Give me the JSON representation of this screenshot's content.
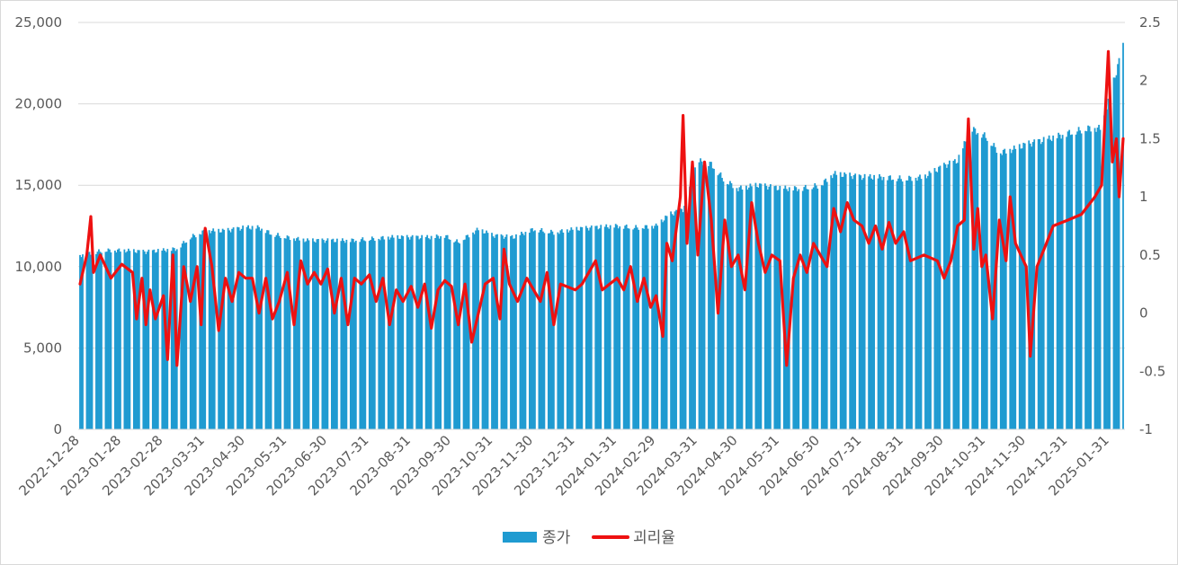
{
  "chart_data": {
    "type": "bar+line",
    "title": "",
    "grid": true,
    "legend_position": "bottom",
    "x_tick_labels": [
      "2022-12-28",
      "2023-01-28",
      "2023-02-28",
      "2023-03-31",
      "2023-04-30",
      "2023-05-31",
      "2023-06-30",
      "2023-07-31",
      "2023-08-31",
      "2023-09-30",
      "2023-10-31",
      "2023-11-30",
      "2023-12-31",
      "2024-01-31",
      "2024-02-29",
      "2024-03-31",
      "2024-04-30",
      "2024-05-31",
      "2024-06-30",
      "2024-07-31",
      "2024-08-31",
      "2024-09-30",
      "2024-10-31",
      "2024-11-30",
      "2024-12-31",
      "2025-01-31"
    ],
    "y_left": {
      "min": 0,
      "max": 25000,
      "ticks": [
        "0",
        "5,000",
        "10,000",
        "15,000",
        "20,000",
        "25,000"
      ]
    },
    "y_right": {
      "min": -1,
      "max": 2.5,
      "ticks": [
        "-1",
        "-0.5",
        "0",
        "0.5",
        "1",
        "1.5",
        "2",
        "2.5"
      ]
    },
    "series": [
      {
        "name": "종가",
        "kind": "bar",
        "axis": "left",
        "color": "#1f9bd1",
        "points": [
          [
            "2022-12-28",
            10700
          ],
          [
            "2023-01-15",
            11000
          ],
          [
            "2023-01-28",
            11000
          ],
          [
            "2023-02-15",
            10900
          ],
          [
            "2023-02-28",
            11000
          ],
          [
            "2023-03-10",
            11100
          ],
          [
            "2023-03-20",
            11800
          ],
          [
            "2023-03-31",
            12200
          ],
          [
            "2023-04-15",
            12200
          ],
          [
            "2023-04-30",
            12400
          ],
          [
            "2023-05-10",
            12400
          ],
          [
            "2023-05-20",
            12000
          ],
          [
            "2023-05-31",
            11800
          ],
          [
            "2023-06-15",
            11600
          ],
          [
            "2023-06-30",
            11600
          ],
          [
            "2023-07-15",
            11600
          ],
          [
            "2023-07-31",
            11700
          ],
          [
            "2023-08-15",
            11800
          ],
          [
            "2023-08-31",
            11800
          ],
          [
            "2023-09-15",
            11800
          ],
          [
            "2023-09-25",
            11900
          ],
          [
            "2023-10-05",
            11500
          ],
          [
            "2023-10-20",
            12300
          ],
          [
            "2023-10-31",
            11900
          ],
          [
            "2023-11-15",
            11800
          ],
          [
            "2023-11-30",
            12300
          ],
          [
            "2023-12-15",
            12100
          ],
          [
            "2023-12-31",
            12300
          ],
          [
            "2024-01-15",
            12400
          ],
          [
            "2024-01-31",
            12500
          ],
          [
            "2024-02-15",
            12400
          ],
          [
            "2024-02-29",
            12500
          ],
          [
            "2024-03-10",
            13200
          ],
          [
            "2024-03-20",
            13500
          ],
          [
            "2024-03-31",
            16500
          ],
          [
            "2024-04-10",
            16300
          ],
          [
            "2024-04-20",
            15300
          ],
          [
            "2024-04-30",
            14800
          ],
          [
            "2024-05-15",
            15000
          ],
          [
            "2024-05-31",
            14800
          ],
          [
            "2024-06-15",
            14800
          ],
          [
            "2024-06-30",
            15000
          ],
          [
            "2024-07-10",
            15700
          ],
          [
            "2024-07-31",
            15500
          ],
          [
            "2024-08-15",
            15500
          ],
          [
            "2024-08-31",
            15400
          ],
          [
            "2024-09-15",
            15500
          ],
          [
            "2024-09-30",
            16200
          ],
          [
            "2024-10-10",
            16500
          ],
          [
            "2024-10-20",
            18500
          ],
          [
            "2024-10-31",
            18000
          ],
          [
            "2024-11-10",
            17000
          ],
          [
            "2024-11-20",
            17200
          ],
          [
            "2024-11-30",
            17500
          ],
          [
            "2024-12-15",
            17800
          ],
          [
            "2024-12-31",
            18200
          ],
          [
            "2025-01-15",
            18500
          ],
          [
            "2025-01-25",
            18500
          ],
          [
            "2025-02-05",
            22000
          ],
          [
            "2025-02-10",
            23500
          ]
        ]
      },
      {
        "name": "괴리율",
        "kind": "line",
        "axis": "right",
        "color": "#ee1111",
        "points": [
          [
            "2022-12-28",
            0.25
          ],
          [
            "2023-01-02",
            0.5
          ],
          [
            "2023-01-05",
            0.83
          ],
          [
            "2023-01-07",
            0.35
          ],
          [
            "2023-01-12",
            0.5
          ],
          [
            "2023-01-20",
            0.3
          ],
          [
            "2023-01-28",
            0.42
          ],
          [
            "2023-02-05",
            0.35
          ],
          [
            "2023-02-08",
            -0.05
          ],
          [
            "2023-02-12",
            0.3
          ],
          [
            "2023-02-15",
            -0.1
          ],
          [
            "2023-02-18",
            0.2
          ],
          [
            "2023-02-22",
            -0.05
          ],
          [
            "2023-02-28",
            0.15
          ],
          [
            "2023-03-03",
            -0.4
          ],
          [
            "2023-03-07",
            0.5
          ],
          [
            "2023-03-10",
            -0.45
          ],
          [
            "2023-03-15",
            0.4
          ],
          [
            "2023-03-20",
            0.1
          ],
          [
            "2023-03-25",
            0.4
          ],
          [
            "2023-03-28",
            -0.1
          ],
          [
            "2023-03-31",
            0.73
          ],
          [
            "2023-04-05",
            0.4
          ],
          [
            "2023-04-10",
            -0.15
          ],
          [
            "2023-04-15",
            0.3
          ],
          [
            "2023-04-20",
            0.1
          ],
          [
            "2023-04-25",
            0.35
          ],
          [
            "2023-04-30",
            0.3
          ],
          [
            "2023-05-05",
            0.3
          ],
          [
            "2023-05-10",
            0.0
          ],
          [
            "2023-05-15",
            0.3
          ],
          [
            "2023-05-20",
            -0.05
          ],
          [
            "2023-05-25",
            0.1
          ],
          [
            "2023-05-31",
            0.35
          ],
          [
            "2023-06-05",
            -0.1
          ],
          [
            "2023-06-10",
            0.45
          ],
          [
            "2023-06-15",
            0.25
          ],
          [
            "2023-06-20",
            0.35
          ],
          [
            "2023-06-25",
            0.25
          ],
          [
            "2023-06-30",
            0.38
          ],
          [
            "2023-07-05",
            0.0
          ],
          [
            "2023-07-10",
            0.3
          ],
          [
            "2023-07-15",
            -0.1
          ],
          [
            "2023-07-20",
            0.3
          ],
          [
            "2023-07-25",
            0.25
          ],
          [
            "2023-07-31",
            0.33
          ],
          [
            "2023-08-05",
            0.1
          ],
          [
            "2023-08-10",
            0.3
          ],
          [
            "2023-08-15",
            -0.1
          ],
          [
            "2023-08-20",
            0.2
          ],
          [
            "2023-08-25",
            0.1
          ],
          [
            "2023-08-31",
            0.23
          ],
          [
            "2023-09-05",
            0.05
          ],
          [
            "2023-09-10",
            0.25
          ],
          [
            "2023-09-15",
            -0.13
          ],
          [
            "2023-09-20",
            0.2
          ],
          [
            "2023-09-25",
            0.28
          ],
          [
            "2023-09-30",
            0.23
          ],
          [
            "2023-10-05",
            -0.1
          ],
          [
            "2023-10-10",
            0.25
          ],
          [
            "2023-10-15",
            -0.25
          ],
          [
            "2023-10-20",
            0.0
          ],
          [
            "2023-10-25",
            0.25
          ],
          [
            "2023-10-31",
            0.3
          ],
          [
            "2023-11-05",
            -0.05
          ],
          [
            "2023-11-08",
            0.55
          ],
          [
            "2023-11-12",
            0.25
          ],
          [
            "2023-11-18",
            0.1
          ],
          [
            "2023-11-25",
            0.3
          ],
          [
            "2023-11-30",
            0.2
          ],
          [
            "2023-12-05",
            0.1
          ],
          [
            "2023-12-10",
            0.35
          ],
          [
            "2023-12-15",
            -0.1
          ],
          [
            "2023-12-20",
            0.25
          ],
          [
            "2023-12-31",
            0.2
          ],
          [
            "2024-01-05",
            0.25
          ],
          [
            "2024-01-15",
            0.45
          ],
          [
            "2024-01-20",
            0.2
          ],
          [
            "2024-01-31",
            0.3
          ],
          [
            "2024-02-05",
            0.2
          ],
          [
            "2024-02-10",
            0.4
          ],
          [
            "2024-02-15",
            0.1
          ],
          [
            "2024-02-20",
            0.3
          ],
          [
            "2024-02-25",
            0.05
          ],
          [
            "2024-02-29",
            0.15
          ],
          [
            "2024-03-05",
            -0.2
          ],
          [
            "2024-03-08",
            0.6
          ],
          [
            "2024-03-12",
            0.45
          ],
          [
            "2024-03-18",
            1.0
          ],
          [
            "2024-03-20",
            1.7
          ],
          [
            "2024-03-23",
            0.6
          ],
          [
            "2024-03-27",
            1.3
          ],
          [
            "2024-03-31",
            0.5
          ],
          [
            "2024-04-05",
            1.3
          ],
          [
            "2024-04-10",
            0.8
          ],
          [
            "2024-04-15",
            0.0
          ],
          [
            "2024-04-20",
            0.8
          ],
          [
            "2024-04-25",
            0.4
          ],
          [
            "2024-04-30",
            0.5
          ],
          [
            "2024-05-05",
            0.2
          ],
          [
            "2024-05-10",
            0.95
          ],
          [
            "2024-05-15",
            0.6
          ],
          [
            "2024-05-20",
            0.35
          ],
          [
            "2024-05-25",
            0.5
          ],
          [
            "2024-05-31",
            0.45
          ],
          [
            "2024-06-05",
            -0.45
          ],
          [
            "2024-06-10",
            0.3
          ],
          [
            "2024-06-15",
            0.5
          ],
          [
            "2024-06-20",
            0.35
          ],
          [
            "2024-06-25",
            0.6
          ],
          [
            "2024-06-30",
            0.5
          ],
          [
            "2024-07-05",
            0.4
          ],
          [
            "2024-07-10",
            0.9
          ],
          [
            "2024-07-15",
            0.7
          ],
          [
            "2024-07-20",
            0.95
          ],
          [
            "2024-07-25",
            0.8
          ],
          [
            "2024-07-31",
            0.75
          ],
          [
            "2024-08-05",
            0.6
          ],
          [
            "2024-08-10",
            0.75
          ],
          [
            "2024-08-15",
            0.55
          ],
          [
            "2024-08-20",
            0.78
          ],
          [
            "2024-08-25",
            0.6
          ],
          [
            "2024-08-31",
            0.7
          ],
          [
            "2024-09-05",
            0.45
          ],
          [
            "2024-09-15",
            0.5
          ],
          [
            "2024-09-25",
            0.45
          ],
          [
            "2024-09-30",
            0.3
          ],
          [
            "2024-10-05",
            0.45
          ],
          [
            "2024-10-10",
            0.75
          ],
          [
            "2024-10-15",
            0.8
          ],
          [
            "2024-10-18",
            1.67
          ],
          [
            "2024-10-22",
            0.55
          ],
          [
            "2024-10-25",
            0.9
          ],
          [
            "2024-10-28",
            0.4
          ],
          [
            "2024-10-31",
            0.5
          ],
          [
            "2024-11-05",
            -0.05
          ],
          [
            "2024-11-10",
            0.8
          ],
          [
            "2024-11-15",
            0.45
          ],
          [
            "2024-11-18",
            1.0
          ],
          [
            "2024-11-22",
            0.6
          ],
          [
            "2024-11-26",
            0.5
          ],
          [
            "2024-11-30",
            0.4
          ],
          [
            "2024-12-03",
            -0.37
          ],
          [
            "2024-12-08",
            0.4
          ],
          [
            "2024-12-15",
            0.6
          ],
          [
            "2024-12-20",
            0.75
          ],
          [
            "2024-12-31",
            0.8
          ],
          [
            "2025-01-10",
            0.85
          ],
          [
            "2025-01-20",
            1.0
          ],
          [
            "2025-01-25",
            1.1
          ],
          [
            "2025-01-30",
            2.25
          ],
          [
            "2025-02-02",
            1.3
          ],
          [
            "2025-02-05",
            1.5
          ],
          [
            "2025-02-07",
            1.0
          ],
          [
            "2025-02-10",
            1.5
          ]
        ]
      }
    ]
  }
}
